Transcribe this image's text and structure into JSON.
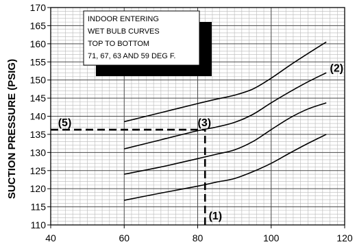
{
  "chart_data": {
    "type": "line",
    "title": "",
    "xlabel": "",
    "ylabel": "SUCTION PRESSURE (PSIG)",
    "xlim": [
      40,
      120
    ],
    "ylim": [
      110,
      170
    ],
    "x_ticks": [
      40,
      60,
      80,
      100,
      120
    ],
    "y_ticks": [
      110,
      115,
      120,
      125,
      130,
      135,
      140,
      145,
      150,
      155,
      160,
      165,
      170
    ],
    "grid": true,
    "minor_grid_x_step": 2,
    "minor_grid_y_step": 1,
    "legend_box": {
      "lines": [
        "INDOOR ENTERING",
        "WET BULB CURVES",
        "TOP TO BOTTOM",
        "71, 67, 63 AND 59 DEG F."
      ],
      "placement": "top-left"
    },
    "series": [
      {
        "x": [
          60,
          70,
          80,
          85,
          90,
          95,
          100,
          105,
          110,
          115
        ],
        "values": [
          138.5,
          141,
          143.5,
          144.7,
          145.8,
          147.5,
          150.5,
          154,
          157.3,
          160.5
        ]
      },
      {
        "x": [
          60,
          70,
          80,
          85,
          90,
          95,
          100,
          105,
          110,
          115
        ],
        "values": [
          131,
          133.5,
          136,
          137,
          138.3,
          140.5,
          143.7,
          146.7,
          149.5,
          152
        ]
      },
      {
        "x": [
          60,
          70,
          80,
          85,
          90,
          95,
          100,
          105,
          110,
          115
        ],
        "values": [
          124,
          126,
          128.3,
          129.5,
          130.7,
          133,
          136.3,
          139.5,
          142,
          143.7
        ]
      },
      {
        "x": [
          60,
          70,
          80,
          85,
          90,
          95,
          100,
          105,
          110,
          115
        ],
        "values": [
          116.8,
          118.8,
          120.7,
          121.8,
          122.8,
          124.7,
          127,
          129.8,
          132.5,
          135
        ]
      }
    ],
    "reference_lines": [
      {
        "x": [
          82,
          82
        ],
        "y": [
          110,
          136.3
        ],
        "style": "dashed"
      },
      {
        "x": [
          40,
          82
        ],
        "y": [
          136.3,
          136.3
        ],
        "style": "dashed"
      }
    ],
    "annotations": [
      {
        "text": "(1)",
        "x": 83,
        "y": 111.5
      },
      {
        "text": "(2)",
        "x": 116,
        "y": 152.3
      },
      {
        "text": "(3)",
        "x": 80,
        "y": 137.3
      },
      {
        "text": "(5)",
        "x": 42,
        "y": 137.3
      }
    ]
  }
}
